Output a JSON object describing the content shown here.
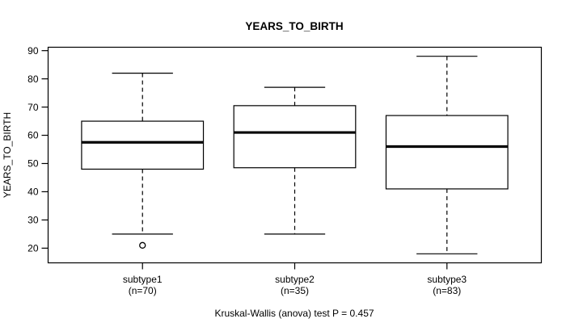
{
  "title": "YEARS_TO_BIRTH",
  "footer": "Kruskal-Wallis (anova) test P = 0.457",
  "chart_data": {
    "type": "boxplot",
    "title": "YEARS_TO_BIRTH",
    "ylabel": "YEARS_TO_BIRTH",
    "xlabel": "",
    "annotation": "Kruskal-Wallis (anova) test P = 0.457",
    "categories": [
      "subtype1",
      "subtype2",
      "subtype3"
    ],
    "category_sublabels": [
      "(n=70)",
      "(n=35)",
      "(n=83)"
    ],
    "groups": [
      {
        "label": "subtype1",
        "sublabel": "(n=70)",
        "n": 70,
        "whisker_low": 25,
        "q1": 48,
        "median": 57.5,
        "q3": 65,
        "whisker_high": 82,
        "outliers": [
          21
        ]
      },
      {
        "label": "subtype2",
        "sublabel": "(n=35)",
        "n": 35,
        "whisker_low": 25,
        "q1": 48.5,
        "median": 61,
        "q3": 70.5,
        "whisker_high": 77,
        "outliers": []
      },
      {
        "label": "subtype3",
        "sublabel": "(n=83)",
        "n": 83,
        "whisker_low": 18,
        "q1": 41,
        "median": 56,
        "q3": 67,
        "whisker_high": 88,
        "outliers": []
      }
    ],
    "yticks": [
      20,
      30,
      40,
      50,
      60,
      70,
      80,
      90
    ],
    "ylim": [
      14.8,
      91.2
    ],
    "grid": false,
    "legend": "none",
    "colors": {
      "stroke": "#000000",
      "box_fill": "#ffffff",
      "background": "#ffffff"
    }
  }
}
